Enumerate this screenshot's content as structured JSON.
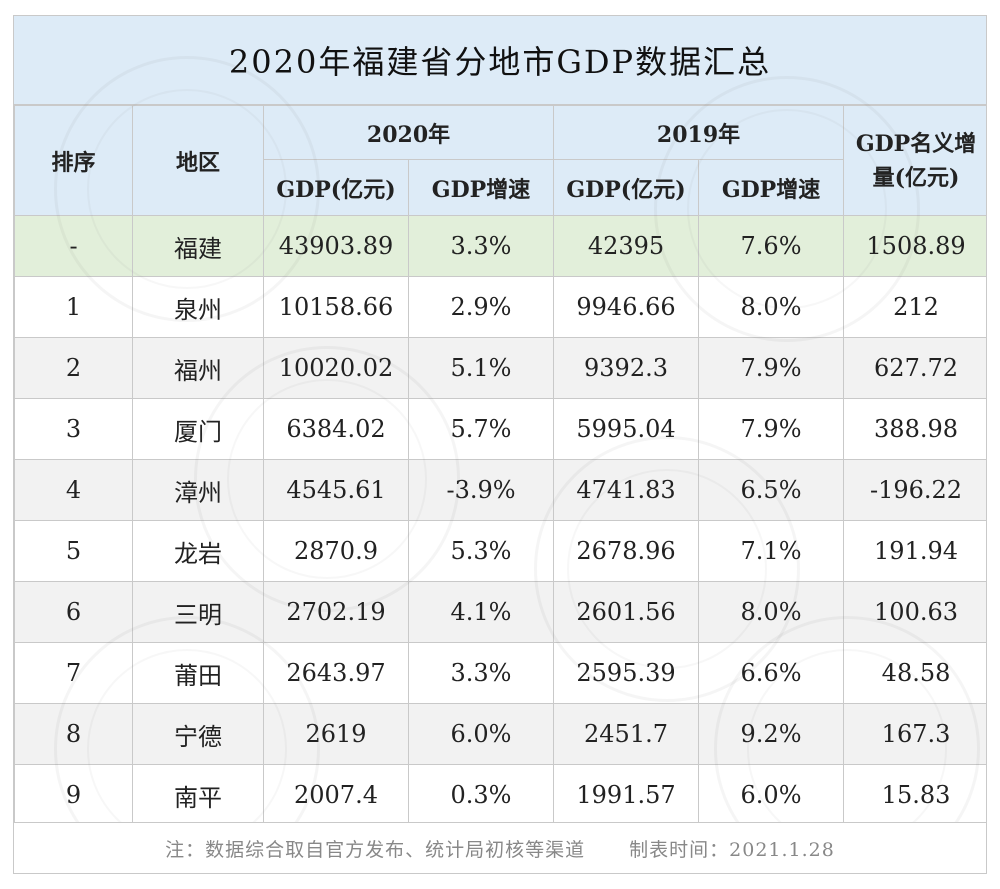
{
  "title": "2020年福建省分地市GDP数据汇总",
  "headers": {
    "rank": "排序",
    "region": "地区",
    "year2020": "2020年",
    "year2019": "2019年",
    "increase_line1": "GDP名义增",
    "increase_line2": "量(亿元)",
    "gdp": "GDP(亿元)",
    "growth": "GDP增速"
  },
  "rows": [
    {
      "rank": "-",
      "region": "福建",
      "gdp2020": "43903.89",
      "growth2020": "3.3%",
      "gdp2019": "42395",
      "growth2019": "7.6%",
      "increase": "1508.89"
    },
    {
      "rank": "1",
      "region": "泉州",
      "gdp2020": "10158.66",
      "growth2020": "2.9%",
      "gdp2019": "9946.66",
      "growth2019": "8.0%",
      "increase": "212"
    },
    {
      "rank": "2",
      "region": "福州",
      "gdp2020": "10020.02",
      "growth2020": "5.1%",
      "gdp2019": "9392.3",
      "growth2019": "7.9%",
      "increase": "627.72"
    },
    {
      "rank": "3",
      "region": "厦门",
      "gdp2020": "6384.02",
      "growth2020": "5.7%",
      "gdp2019": "5995.04",
      "growth2019": "7.9%",
      "increase": "388.98"
    },
    {
      "rank": "4",
      "region": "漳州",
      "gdp2020": "4545.61",
      "growth2020": "-3.9%",
      "gdp2019": "4741.83",
      "growth2019": "6.5%",
      "increase": "-196.22"
    },
    {
      "rank": "5",
      "region": "龙岩",
      "gdp2020": "2870.9",
      "growth2020": "5.3%",
      "gdp2019": "2678.96",
      "growth2019": "7.1%",
      "increase": "191.94"
    },
    {
      "rank": "6",
      "region": "三明",
      "gdp2020": "2702.19",
      "growth2020": "4.1%",
      "gdp2019": "2601.56",
      "growth2019": "8.0%",
      "increase": "100.63"
    },
    {
      "rank": "7",
      "region": "莆田",
      "gdp2020": "2643.97",
      "growth2020": "3.3%",
      "gdp2019": "2595.39",
      "growth2019": "6.6%",
      "increase": "48.58"
    },
    {
      "rank": "8",
      "region": "宁德",
      "gdp2020": "2619",
      "growth2020": "6.0%",
      "gdp2019": "2451.7",
      "growth2019": "9.2%",
      "increase": "167.3"
    },
    {
      "rank": "9",
      "region": "南平",
      "gdp2020": "2007.4",
      "growth2020": "0.3%",
      "gdp2019": "1991.57",
      "growth2019": "6.0%",
      "increase": "15.83"
    }
  ],
  "footer": {
    "note": "注：数据综合取自官方发布、统计局初核等渠道",
    "date": "制表时间：2021.1.28"
  },
  "colors": {
    "header_bg": "#ddebf7",
    "highlight_row_bg": "#e2efda",
    "alt_row_bg": "#f2f2f2",
    "border": "#c9c9c9"
  }
}
